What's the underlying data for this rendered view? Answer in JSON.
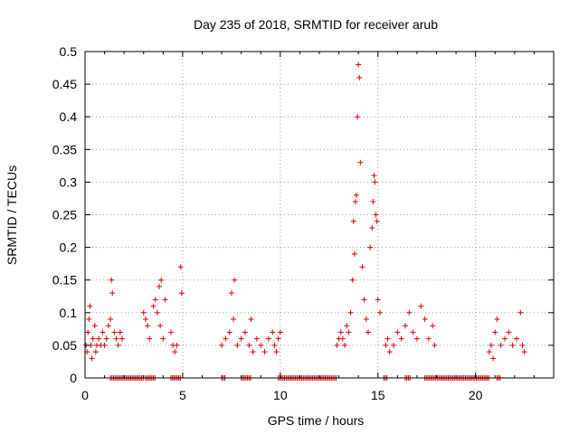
{
  "chart_data": {
    "type": "scatter",
    "title": "Day 235 of 2018, SRMTID for receiver arub",
    "xlabel": "GPS time / hours",
    "ylabel": "SRMTID / TECUs",
    "xlim": [
      0,
      24
    ],
    "ylim": [
      0,
      0.5
    ],
    "grid": true,
    "marker": "+",
    "color": "#e00000",
    "x_ticks": [
      0,
      5,
      10,
      15,
      20
    ],
    "x_tick_labels": [
      "0",
      "5",
      "10",
      "15",
      "20"
    ],
    "y_ticks": [
      0,
      0.05,
      0.1,
      0.15,
      0.2,
      0.25,
      0.3,
      0.35,
      0.4,
      0.45,
      0.5
    ],
    "y_tick_labels": [
      "0",
      "0.05",
      "0.1",
      "0.15",
      "0.2",
      "0.25",
      "0.3",
      "0.35",
      "0.4",
      "0.45",
      "0.5"
    ],
    "series": [
      {
        "name": "SRMTID",
        "points": [
          [
            0.05,
            0.05
          ],
          [
            0.1,
            0.04
          ],
          [
            0.15,
            0.07
          ],
          [
            0.2,
            0.09
          ],
          [
            0.25,
            0.11
          ],
          [
            0.3,
            0.05
          ],
          [
            0.35,
            0.03
          ],
          [
            0.4,
            0.06
          ],
          [
            0.5,
            0.08
          ],
          [
            0.55,
            0.04
          ],
          [
            0.6,
            0.05
          ],
          [
            0.7,
            0.06
          ],
          [
            0.8,
            0.05
          ],
          [
            0.9,
            0.07
          ],
          [
            1.0,
            0.05
          ],
          [
            1.1,
            0.06
          ],
          [
            1.2,
            0.08
          ],
          [
            1.3,
            0.09
          ],
          [
            1.35,
            0.15
          ],
          [
            1.4,
            0.13
          ],
          [
            1.5,
            0.07
          ],
          [
            1.6,
            0.06
          ],
          [
            1.7,
            0.05
          ],
          [
            1.8,
            0.07
          ],
          [
            1.9,
            0.06
          ],
          [
            3.0,
            0.1
          ],
          [
            3.1,
            0.09
          ],
          [
            3.2,
            0.08
          ],
          [
            3.3,
            0.06
          ],
          [
            3.5,
            0.11
          ],
          [
            3.6,
            0.12
          ],
          [
            3.7,
            0.1
          ],
          [
            3.8,
            0.14
          ],
          [
            3.85,
            0.08
          ],
          [
            3.9,
            0.15
          ],
          [
            4.0,
            0.06
          ],
          [
            4.1,
            0.12
          ],
          [
            4.4,
            0.07
          ],
          [
            4.5,
            0.05
          ],
          [
            4.6,
            0.04
          ],
          [
            4.7,
            0.05
          ],
          [
            4.9,
            0.17
          ],
          [
            4.95,
            0.13
          ],
          [
            7.0,
            0.05
          ],
          [
            7.2,
            0.06
          ],
          [
            7.4,
            0.07
          ],
          [
            7.5,
            0.13
          ],
          [
            7.6,
            0.09
          ],
          [
            7.65,
            0.15
          ],
          [
            7.8,
            0.05
          ],
          [
            8.0,
            0.06
          ],
          [
            8.2,
            0.07
          ],
          [
            8.4,
            0.05
          ],
          [
            8.5,
            0.09
          ],
          [
            8.6,
            0.04
          ],
          [
            8.8,
            0.06
          ],
          [
            9.0,
            0.05
          ],
          [
            9.2,
            0.04
          ],
          [
            9.4,
            0.06
          ],
          [
            9.6,
            0.07
          ],
          [
            9.7,
            0.05
          ],
          [
            9.8,
            0.04
          ],
          [
            9.9,
            0.06
          ],
          [
            10.0,
            0.07
          ],
          [
            12.9,
            0.05
          ],
          [
            13.0,
            0.06
          ],
          [
            13.1,
            0.07
          ],
          [
            13.2,
            0.06
          ],
          [
            13.3,
            0.05
          ],
          [
            13.4,
            0.08
          ],
          [
            13.5,
            0.07
          ],
          [
            13.6,
            0.1
          ],
          [
            13.7,
            0.15
          ],
          [
            13.75,
            0.24
          ],
          [
            13.8,
            0.19
          ],
          [
            13.85,
            0.27
          ],
          [
            13.9,
            0.28
          ],
          [
            13.95,
            0.4
          ],
          [
            14.0,
            0.48
          ],
          [
            14.05,
            0.46
          ],
          [
            14.1,
            0.33
          ],
          [
            14.2,
            0.17
          ],
          [
            14.3,
            0.12
          ],
          [
            14.4,
            0.09
          ],
          [
            14.5,
            0.07
          ],
          [
            14.6,
            0.2
          ],
          [
            14.7,
            0.23
          ],
          [
            14.75,
            0.27
          ],
          [
            14.8,
            0.31
          ],
          [
            14.85,
            0.3
          ],
          [
            14.9,
            0.25
          ],
          [
            14.95,
            0.24
          ],
          [
            15.0,
            0.12
          ],
          [
            15.1,
            0.1
          ],
          [
            15.4,
            0.05
          ],
          [
            15.5,
            0.06
          ],
          [
            15.6,
            0.04
          ],
          [
            15.8,
            0.05
          ],
          [
            16.0,
            0.07
          ],
          [
            16.2,
            0.06
          ],
          [
            16.4,
            0.08
          ],
          [
            16.6,
            0.1
          ],
          [
            16.8,
            0.07
          ],
          [
            17.0,
            0.06
          ],
          [
            17.2,
            0.11
          ],
          [
            17.4,
            0.09
          ],
          [
            17.6,
            0.06
          ],
          [
            17.8,
            0.08
          ],
          [
            17.9,
            0.05
          ],
          [
            20.7,
            0.04
          ],
          [
            20.8,
            0.05
          ],
          [
            20.9,
            0.03
          ],
          [
            21.0,
            0.07
          ],
          [
            21.1,
            0.09
          ],
          [
            21.3,
            0.05
          ],
          [
            21.5,
            0.06
          ],
          [
            21.7,
            0.07
          ],
          [
            21.9,
            0.05
          ],
          [
            22.1,
            0.06
          ],
          [
            22.3,
            0.1
          ],
          [
            22.4,
            0.05
          ],
          [
            22.5,
            0.04
          ]
        ]
      }
    ],
    "zero_runs": [
      [
        1.3,
        3.0
      ],
      [
        3.1,
        3.6
      ],
      [
        4.4,
        4.9
      ],
      [
        7.0,
        7.2
      ],
      [
        8.0,
        8.5
      ],
      [
        9.9,
        12.9
      ],
      [
        15.3,
        15.5
      ],
      [
        16.4,
        16.7
      ],
      [
        17.4,
        20.7
      ],
      [
        21.1,
        21.3
      ]
    ]
  }
}
